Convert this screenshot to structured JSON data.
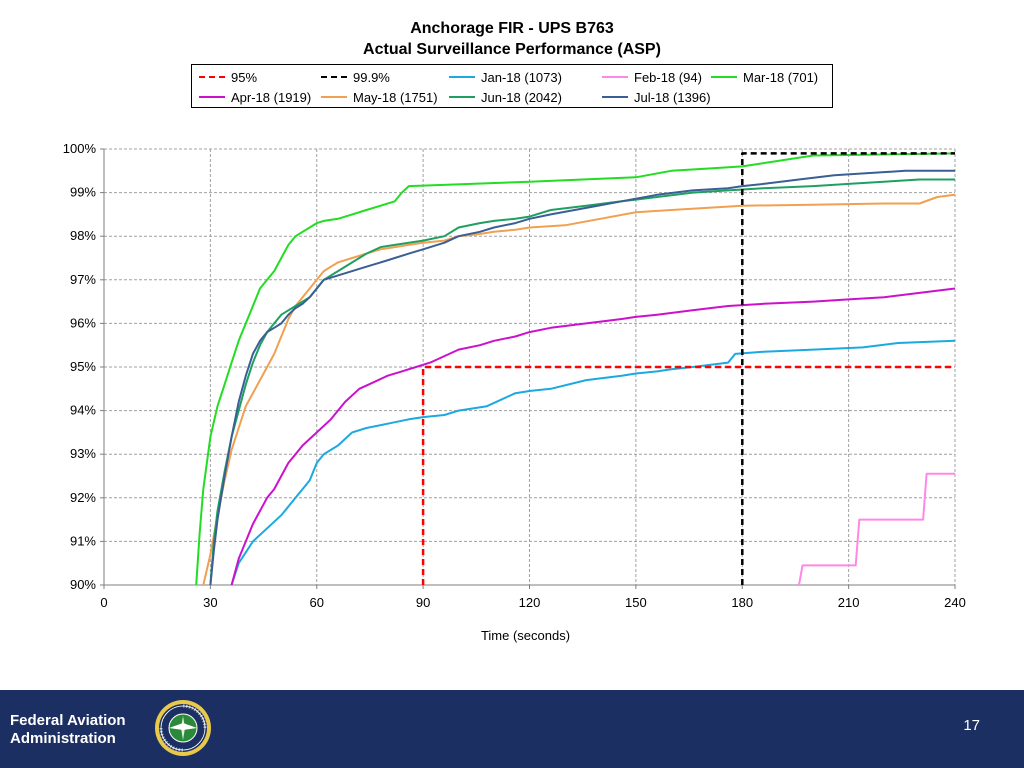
{
  "chart_data": {
    "type": "line",
    "title_line1": "Anchorage  FIR  - UPS B763",
    "title_line2": "Actual  Surveillance  Performance  (ASP)",
    "xlabel": "Time (seconds)",
    "ylabel": "",
    "xlim": [
      0,
      240
    ],
    "ylim": [
      90,
      100
    ],
    "x_ticks": [
      0,
      30,
      60,
      90,
      120,
      150,
      180,
      210,
      240
    ],
    "x_tick_labels": [
      "0",
      "30",
      "60",
      "90",
      "120",
      "150",
      "180",
      "210",
      "240"
    ],
    "y_ticks": [
      90,
      91,
      92,
      93,
      94,
      95,
      96,
      97,
      98,
      99,
      100
    ],
    "y_tick_labels": [
      "90%",
      "91%",
      "92%",
      "93%",
      "94%",
      "95%",
      "96%",
      "97%",
      "98%",
      "99%",
      "100%"
    ],
    "grid": true,
    "legend_position": "top",
    "series": [
      {
        "name": "95%",
        "color": "#ff0000",
        "dash": true,
        "x": [
          90,
          90,
          240
        ],
        "y": [
          90,
          95,
          95
        ]
      },
      {
        "name": "99.9%",
        "color": "#000000",
        "dash": true,
        "x": [
          180,
          180,
          240
        ],
        "y": [
          90,
          99.9,
          99.9
        ]
      },
      {
        "name": "Jan-18 (1073)",
        "color": "#1ba9e0",
        "dash": false,
        "x": [
          36,
          38,
          42,
          46,
          50,
          54,
          56,
          58,
          60,
          62,
          66,
          70,
          74,
          80,
          86,
          90,
          96,
          100,
          108,
          116,
          120,
          126,
          136,
          146,
          150,
          156,
          160,
          166,
          176,
          178,
          186,
          200,
          214,
          224,
          240
        ],
        "y": [
          90,
          90.5,
          91,
          91.3,
          91.6,
          92,
          92.2,
          92.4,
          92.8,
          93,
          93.2,
          93.5,
          93.6,
          93.7,
          93.8,
          93.85,
          93.9,
          94,
          94.1,
          94.4,
          94.45,
          94.5,
          94.7,
          94.8,
          94.85,
          94.9,
          94.95,
          95,
          95.1,
          95.3,
          95.35,
          95.4,
          95.45,
          95.55,
          95.6
        ]
      },
      {
        "name": "Feb-18 (94)",
        "color": "#ff88e6",
        "dash": false,
        "x": [
          196,
          197,
          198,
          212,
          213,
          231,
          232,
          240
        ],
        "y": [
          90,
          90.45,
          90.45,
          90.45,
          91.5,
          91.5,
          92.55,
          92.55
        ]
      },
      {
        "name": "Mar-18 (701)",
        "color": "#22dd22",
        "dash": false,
        "x": [
          26,
          27,
          28,
          30,
          32,
          34,
          36,
          38,
          40,
          42,
          44,
          46,
          48,
          50,
          52,
          54,
          56,
          58,
          60,
          62,
          66,
          70,
          74,
          78,
          82,
          84,
          86,
          120,
          150,
          160,
          170,
          180,
          200,
          240
        ],
        "y": [
          90,
          91.2,
          92.2,
          93.4,
          94.1,
          94.6,
          95.1,
          95.6,
          96,
          96.4,
          96.8,
          97,
          97.2,
          97.5,
          97.8,
          98,
          98.1,
          98.2,
          98.3,
          98.35,
          98.4,
          98.5,
          98.6,
          98.7,
          98.8,
          99,
          99.15,
          99.25,
          99.35,
          99.5,
          99.55,
          99.6,
          99.85,
          99.9
        ]
      },
      {
        "name": "Apr-18 (1919)",
        "color": "#cc11cc",
        "dash": false,
        "x": [
          36,
          38,
          40,
          42,
          44,
          46,
          48,
          50,
          52,
          54,
          56,
          60,
          64,
          68,
          72,
          76,
          80,
          84,
          88,
          92,
          96,
          100,
          106,
          110,
          116,
          120,
          126,
          136,
          146,
          150,
          156,
          166,
          176,
          186,
          200,
          210,
          220,
          230,
          240
        ],
        "y": [
          90,
          90.6,
          91,
          91.4,
          91.7,
          92,
          92.2,
          92.5,
          92.8,
          93,
          93.2,
          93.5,
          93.8,
          94.2,
          94.5,
          94.65,
          94.8,
          94.9,
          95,
          95.1,
          95.25,
          95.4,
          95.5,
          95.6,
          95.7,
          95.8,
          95.9,
          96,
          96.1,
          96.15,
          96.2,
          96.3,
          96.4,
          96.45,
          96.5,
          96.55,
          96.6,
          96.7,
          96.8
        ]
      },
      {
        "name": "May-18 (1751)",
        "color": "#f0a050",
        "dash": false,
        "x": [
          28,
          30,
          32,
          34,
          36,
          38,
          40,
          42,
          44,
          46,
          48,
          50,
          52,
          54,
          56,
          58,
          60,
          62,
          64,
          66,
          68,
          70,
          74,
          78,
          82,
          86,
          90,
          96,
          100,
          106,
          110,
          116,
          120,
          130,
          140,
          150,
          160,
          170,
          180,
          200,
          220,
          230,
          235,
          240
        ],
        "y": [
          90,
          90.7,
          91.6,
          92.4,
          93.1,
          93.6,
          94.1,
          94.4,
          94.7,
          95,
          95.3,
          95.7,
          96.1,
          96.4,
          96.6,
          96.8,
          97,
          97.2,
          97.3,
          97.4,
          97.45,
          97.5,
          97.6,
          97.7,
          97.75,
          97.8,
          97.85,
          97.9,
          98,
          98.05,
          98.1,
          98.15,
          98.2,
          98.25,
          98.4,
          98.55,
          98.6,
          98.65,
          98.7,
          98.72,
          98.75,
          98.75,
          98.9,
          98.95
        ]
      },
      {
        "name": "Jun-18 (2042)",
        "color": "#1fa060",
        "dash": false,
        "x": [
          30,
          31,
          32,
          34,
          36,
          38,
          40,
          42,
          44,
          46,
          48,
          50,
          52,
          54,
          56,
          58,
          60,
          62,
          66,
          70,
          74,
          78,
          82,
          86,
          90,
          96,
          100,
          106,
          110,
          116,
          120,
          126,
          136,
          146,
          156,
          166,
          176,
          186,
          200,
          210,
          230,
          240
        ],
        "y": [
          90,
          91,
          91.7,
          92.6,
          93.4,
          94,
          94.6,
          95.1,
          95.5,
          95.8,
          96,
          96.2,
          96.3,
          96.4,
          96.5,
          96.6,
          96.8,
          97,
          97.2,
          97.4,
          97.6,
          97.75,
          97.8,
          97.85,
          97.9,
          98,
          98.2,
          98.3,
          98.35,
          98.4,
          98.45,
          98.6,
          98.7,
          98.8,
          98.9,
          99,
          99.05,
          99.1,
          99.15,
          99.2,
          99.3,
          99.3
        ]
      },
      {
        "name": "Jul-18 (1396)",
        "color": "#3a5f94",
        "dash": false,
        "x": [
          30,
          31,
          32,
          34,
          36,
          38,
          40,
          42,
          44,
          46,
          48,
          50,
          52,
          54,
          56,
          58,
          60,
          62,
          66,
          70,
          74,
          78,
          82,
          86,
          90,
          96,
          100,
          106,
          110,
          116,
          120,
          126,
          136,
          146,
          156,
          166,
          176,
          180,
          186,
          196,
          206,
          216,
          226,
          240
        ],
        "y": [
          90,
          90.8,
          91.5,
          92.5,
          93.4,
          94.2,
          94.8,
          95.3,
          95.6,
          95.8,
          95.9,
          96,
          96.2,
          96.35,
          96.45,
          96.6,
          96.8,
          97,
          97.1,
          97.2,
          97.3,
          97.4,
          97.5,
          97.6,
          97.7,
          97.85,
          98,
          98.1,
          98.2,
          98.3,
          98.4,
          98.5,
          98.65,
          98.8,
          98.95,
          99.05,
          99.1,
          99.15,
          99.2,
          99.3,
          99.4,
          99.45,
          99.5,
          99.5
        ]
      }
    ]
  },
  "footer": {
    "org_line1": "Federal Aviation",
    "org_line2": "Administration",
    "page_number": "17",
    "seal_icon": "faa-seal-icon",
    "background_color": "#1c2f63"
  }
}
